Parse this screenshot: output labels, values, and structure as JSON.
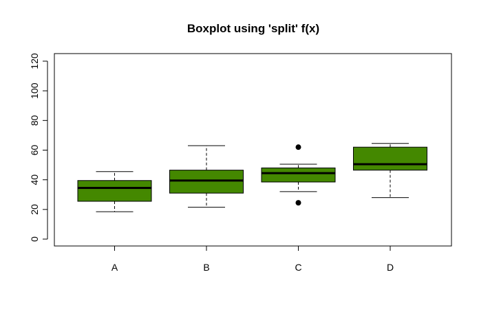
{
  "chart_data": {
    "type": "boxplot",
    "title": "Boxplot using 'split' f(x)",
    "xlabel": "",
    "ylabel": "",
    "ylim": [
      0,
      120
    ],
    "y_ticks": [
      0,
      20,
      40,
      60,
      80,
      100,
      120
    ],
    "categories": [
      "A",
      "B",
      "C",
      "D"
    ],
    "box_color": "#448800",
    "grid": false,
    "legend": "none",
    "boxes": [
      {
        "category": "A",
        "whisker_low": 18.5,
        "q1": 25.5,
        "median": 34.5,
        "q3": 39.5,
        "whisker_high": 45.5,
        "outliers": []
      },
      {
        "category": "B",
        "whisker_low": 21.5,
        "q1": 31,
        "median": 39.5,
        "q3": 46.5,
        "whisker_high": 63,
        "outliers": []
      },
      {
        "category": "C",
        "whisker_low": 32,
        "q1": 38.5,
        "median": 44.5,
        "q3": 48,
        "whisker_high": 50.5,
        "outliers": [
          62,
          24.5
        ]
      },
      {
        "category": "D",
        "whisker_low": 28,
        "q1": 46.5,
        "median": 50.5,
        "q3": 62,
        "whisker_high": 64.5,
        "outliers": []
      }
    ]
  }
}
